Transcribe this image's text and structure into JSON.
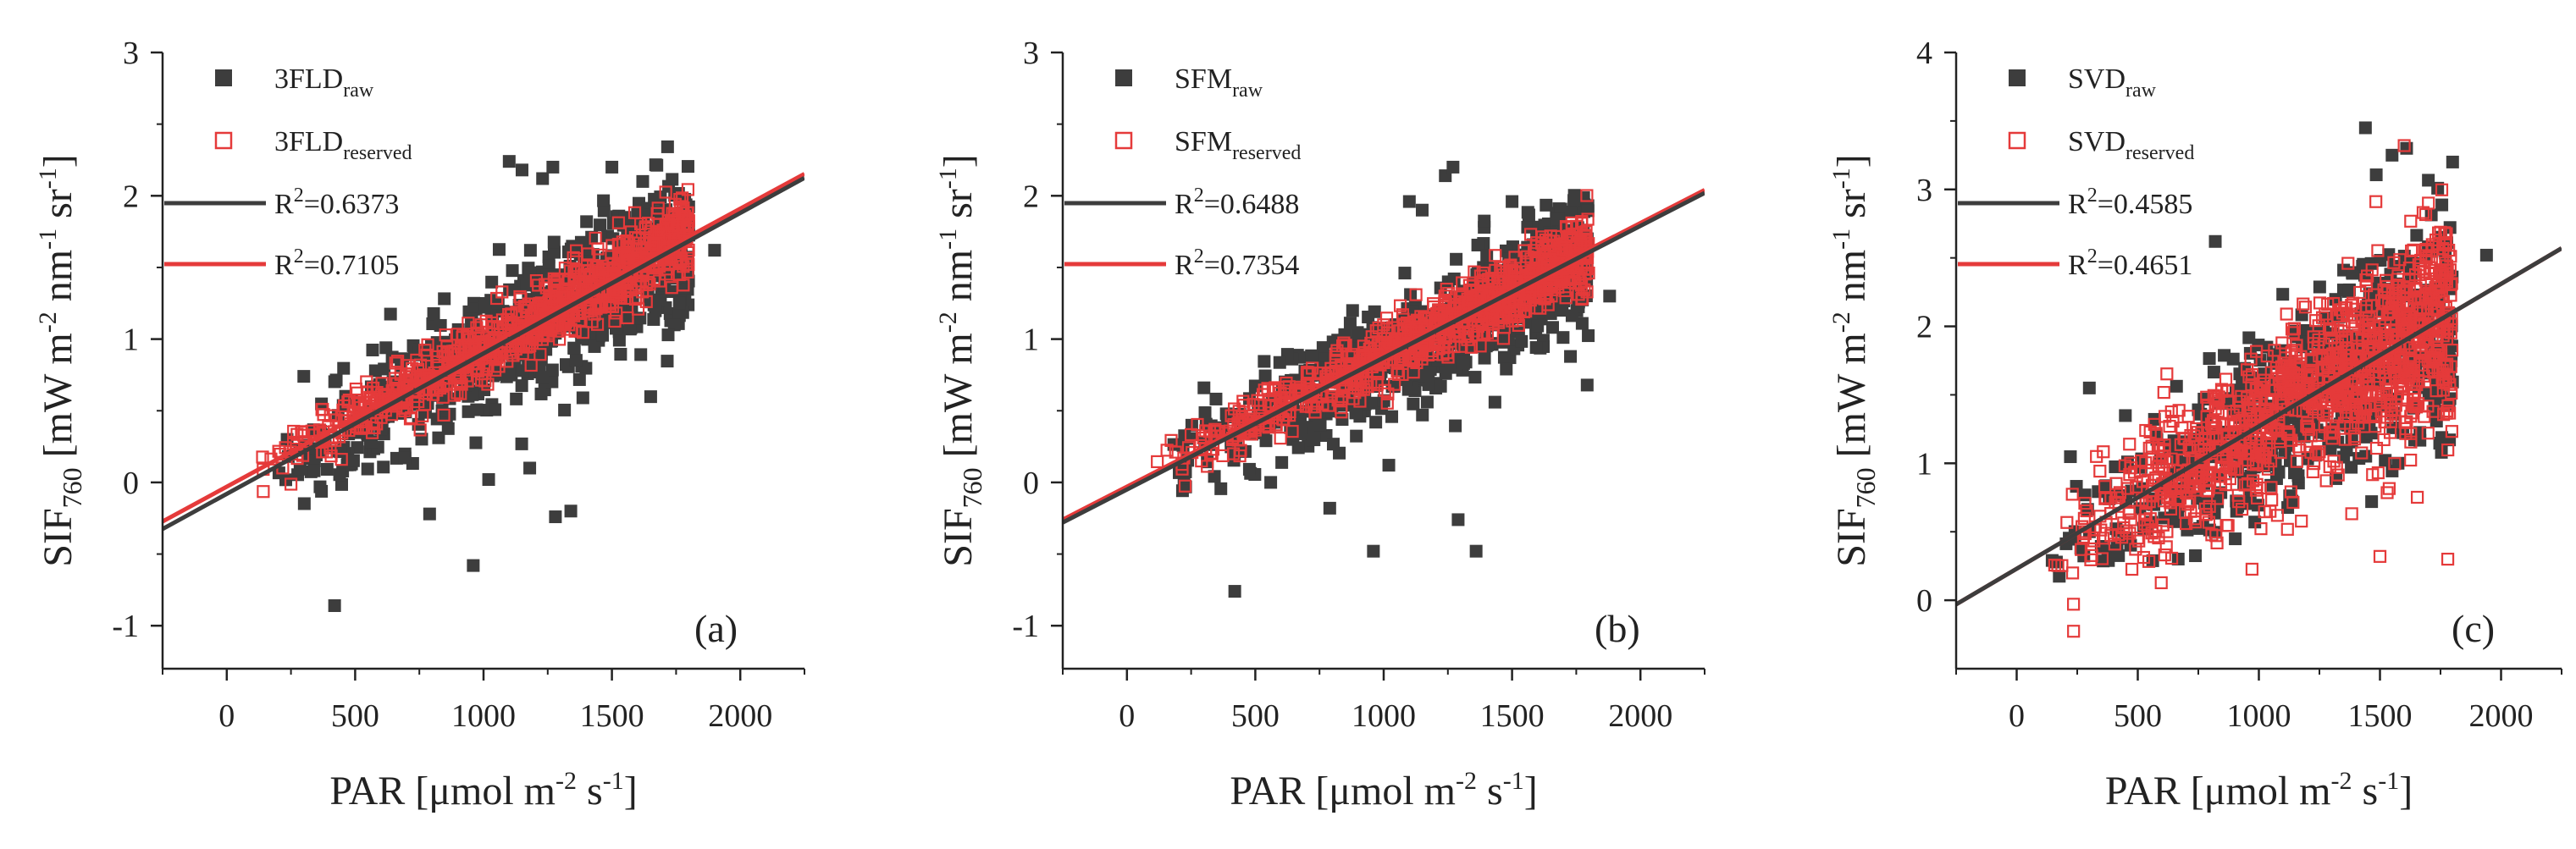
{
  "figure": {
    "colors": {
      "raw": "#3d3d3d",
      "reserved": "#e53a3a",
      "axis": "#222222"
    },
    "common": {
      "xlabel": {
        "main": "PAR [μmol m",
        "sup1": "-2",
        "mid": " s",
        "sup2": "-1",
        "end": "]"
      },
      "ylabel": {
        "main": "SIF",
        "sub": "760",
        "rest1": " [mW m",
        "sup1": "-2",
        "rest2": " nm",
        "sup2": "-1",
        "rest3": " sr",
        "sup3": "-1",
        "end": "]"
      }
    }
  },
  "chart_data": [
    {
      "type": "scatter",
      "panel_label": "(a)",
      "xlim": [
        -250,
        2250
      ],
      "ylim": [
        -1.3,
        3
      ],
      "xticks": [
        "0",
        "500",
        "1000",
        "1500",
        "2000"
      ],
      "yticks": [
        "-1",
        "0",
        "1",
        "2",
        "3"
      ],
      "series": [
        {
          "name": "3FLD",
          "sub": "raw",
          "marker": "filled-square",
          "fit": {
            "r2_label": "R",
            "r2_sup": "2",
            "r2_value": "=0.6373",
            "slope": 0.00098,
            "intercept": -0.08
          },
          "cloud": {
            "slope": 0.00098,
            "intercept": -0.08,
            "spread": 0.28,
            "n": 700,
            "xmin": 150,
            "xmax": 1800
          },
          "outliers": [
            [
              420,
              -0.86
            ],
            [
              960,
              -0.58
            ],
            [
              1280,
              -0.24
            ],
            [
              1340,
              -0.2
            ],
            [
              790,
              -0.22
            ],
            [
              1100,
              2.24
            ],
            [
              1150,
              2.18
            ],
            [
              1230,
              2.12
            ],
            [
              1270,
              2.2
            ],
            [
              1500,
              2.2
            ],
            [
              1620,
              2.1
            ],
            [
              300,
              0.74
            ],
            [
              1900,
              1.62
            ],
            [
              1020,
              0.02
            ],
            [
              1180,
              0.1
            ]
          ]
        },
        {
          "name": "3FLD",
          "sub": "reserved",
          "marker": "open-square",
          "fit": {
            "r2_label": "R",
            "r2_sup": "2",
            "r2_value": "=0.7105",
            "slope": 0.00097,
            "intercept": -0.03
          },
          "cloud": {
            "slope": 0.00097,
            "intercept": -0.03,
            "spread": 0.14,
            "n": 900,
            "xmin": 100,
            "xmax": 1800
          },
          "outliers": []
        }
      ]
    },
    {
      "type": "scatter",
      "panel_label": "(b)",
      "xlim": [
        -250,
        2250
      ],
      "ylim": [
        -1.3,
        3
      ],
      "xticks": [
        "0",
        "500",
        "1000",
        "1500",
        "2000"
      ],
      "yticks": [
        "-1",
        "0",
        "1",
        "2",
        "3"
      ],
      "series": [
        {
          "name": "SFM",
          "sub": "raw",
          "marker": "filled-square",
          "fit": {
            "r2_label": "R",
            "r2_sup": "2",
            "r2_value": "=0.6488",
            "slope": 0.00092,
            "intercept": -0.05
          },
          "cloud": {
            "slope": 0.00092,
            "intercept": -0.05,
            "spread": 0.26,
            "n": 700,
            "xmin": 150,
            "xmax": 1800
          },
          "outliers": [
            [
              420,
              -0.76
            ],
            [
              960,
              -0.48
            ],
            [
              1290,
              -0.26
            ],
            [
              1360,
              -0.48
            ],
            [
              790,
              -0.18
            ],
            [
              1100,
              1.96
            ],
            [
              1150,
              1.9
            ],
            [
              1240,
              2.14
            ],
            [
              1270,
              2.2
            ],
            [
              1500,
              1.96
            ],
            [
              300,
              0.66
            ],
            [
              1880,
              1.3
            ],
            [
              1020,
              0.12
            ],
            [
              560,
              0.0
            ]
          ]
        },
        {
          "name": "SFM",
          "sub": "reserved",
          "marker": "open-square",
          "fit": {
            "r2_label": "R",
            "r2_sup": "2",
            "r2_value": "=0.7354",
            "slope": 0.00092,
            "intercept": -0.03
          },
          "cloud": {
            "slope": 0.00092,
            "intercept": -0.03,
            "spread": 0.13,
            "n": 900,
            "xmin": 100,
            "xmax": 1800
          },
          "outliers": []
        }
      ]
    },
    {
      "type": "scatter",
      "panel_label": "(c)",
      "xlim": [
        -250,
        2250
      ],
      "ylim": [
        -0.5,
        4
      ],
      "xticks": [
        "0",
        "500",
        "1000",
        "1500",
        "2000"
      ],
      "yticks": [
        "0",
        "1",
        "2",
        "3",
        "4"
      ],
      "series": [
        {
          "name": "SVD",
          "sub": "raw",
          "marker": "filled-square",
          "fit": {
            "r2_label": "R",
            "r2_sup": "2",
            "r2_value": "=0.4585",
            "slope": 0.00104,
            "intercept": 0.23
          },
          "cloud": {
            "slope": 0.00104,
            "intercept": 0.23,
            "spread": 0.42,
            "n": 600,
            "xmin": 100,
            "xmax": 1800
          },
          "outliers": [
            [
              1440,
              3.45
            ],
            [
              1610,
              3.3
            ],
            [
              1550,
              3.25
            ],
            [
              820,
              2.62
            ],
            [
              1940,
              2.52
            ],
            [
              1800,
              3.2
            ],
            [
              300,
              1.55
            ]
          ]
        },
        {
          "name": "SVD",
          "sub": "reserved",
          "marker": "open-square",
          "fit": {
            "r2_label": "R",
            "r2_sup": "2",
            "r2_value": "=0.4651",
            "slope": 0.00104,
            "intercept": 0.23
          },
          "cloud": {
            "slope": 0.00104,
            "intercept": 0.23,
            "spread": 0.38,
            "n": 1100,
            "xmin": 100,
            "xmax": 1800
          },
          "outliers": [
            [
              1600,
              3.32
            ],
            [
              1700,
              2.9
            ],
            [
              1500,
              0.32
            ],
            [
              1780,
              0.3
            ]
          ]
        }
      ]
    }
  ]
}
